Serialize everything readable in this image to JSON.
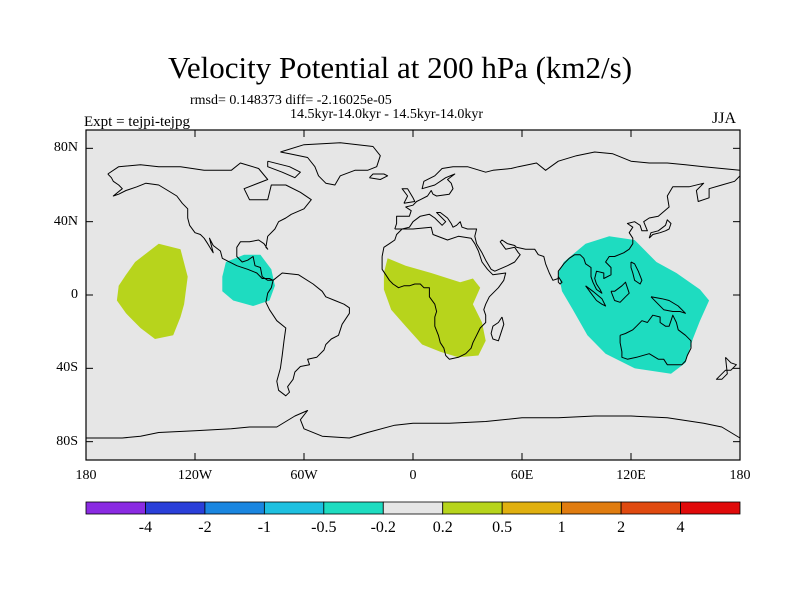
{
  "chart_data": {
    "type": "contour-map",
    "title": "Velocity Potential at 200 hPa (km2/s)",
    "subtitle_stats": "rmsd= 0.148373 diff= -2.16025e-05",
    "experiment_range": "14.5kyr-14.0kyr - 14.5kyr-14.0kyr",
    "experiment_label": "Expt = tejpi-tejpg",
    "season": "JJA",
    "x_axis": {
      "range": [
        -180,
        180
      ],
      "ticks": [
        {
          "value": -180,
          "label": "180"
        },
        {
          "value": -120,
          "label": "120W"
        },
        {
          "value": -60,
          "label": "60W"
        },
        {
          "value": 0,
          "label": "0"
        },
        {
          "value": 60,
          "label": "60E"
        },
        {
          "value": 120,
          "label": "120E"
        },
        {
          "value": 180,
          "label": "180"
        }
      ]
    },
    "y_axis": {
      "range": [
        -90,
        90
      ],
      "ticks": [
        {
          "value": 80,
          "label": "80N"
        },
        {
          "value": 40,
          "label": "40N"
        },
        {
          "value": 0,
          "label": "0"
        },
        {
          "value": -40,
          "label": "40S"
        },
        {
          "value": -80,
          "label": "80S"
        }
      ]
    },
    "colorbar": {
      "colors": [
        "#8a2be2",
        "#2a3fd9",
        "#1a86e0",
        "#1ec0e0",
        "#1edcc0",
        "#e6e6e6",
        "#b7d41c",
        "#e0b010",
        "#e07c10",
        "#e04a10",
        "#e00a0a"
      ],
      "labels": [
        "-4",
        "-2",
        "-1",
        "-0.5",
        "-0.2",
        "0.2",
        "0.5",
        "1",
        "2",
        "4"
      ]
    },
    "regions": [
      {
        "name": "central-pacific",
        "level": "0.2 to 0.5",
        "color": "#b7d41c",
        "outline": [
          [
            -153,
            18
          ],
          [
            -140,
            28
          ],
          [
            -128,
            25
          ],
          [
            -124,
            10
          ],
          [
            -126,
            -5
          ],
          [
            -128,
            -12
          ],
          [
            -132,
            -22
          ],
          [
            -142,
            -24
          ],
          [
            -150,
            -18
          ],
          [
            -158,
            -10
          ],
          [
            -163,
            -3
          ],
          [
            -162,
            5
          ],
          [
            -158,
            11
          ]
        ]
      },
      {
        "name": "central-america",
        "level": "-0.5 to -0.2",
        "color": "#1edcc0",
        "outline": [
          [
            -103,
            18
          ],
          [
            -93,
            22
          ],
          [
            -84,
            22
          ],
          [
            -78,
            14
          ],
          [
            -76,
            5
          ],
          [
            -79,
            -3
          ],
          [
            -88,
            -6
          ],
          [
            -99,
            -3
          ],
          [
            -105,
            2
          ],
          [
            -105,
            10
          ]
        ]
      },
      {
        "name": "africa",
        "level": "0.2 to 0.5",
        "color": "#b7d41c",
        "outline": [
          [
            -14,
            20
          ],
          [
            -4,
            16
          ],
          [
            10,
            12
          ],
          [
            26,
            7
          ],
          [
            33,
            9
          ],
          [
            37,
            4
          ],
          [
            33,
            -5
          ],
          [
            38,
            -15
          ],
          [
            40,
            -25
          ],
          [
            36,
            -33
          ],
          [
            25,
            -34
          ],
          [
            15,
            -31
          ],
          [
            5,
            -27
          ],
          [
            -4,
            -17
          ],
          [
            -12,
            -8
          ],
          [
            -16,
            3
          ],
          [
            -16,
            12
          ]
        ]
      },
      {
        "name": "indo-pacific",
        "level": "-0.5 to -0.2",
        "color": "#1edcc0",
        "outline": [
          [
            83,
            18
          ],
          [
            95,
            28
          ],
          [
            108,
            32
          ],
          [
            122,
            30
          ],
          [
            134,
            18
          ],
          [
            145,
            12
          ],
          [
            158,
            3
          ],
          [
            163,
            -3
          ],
          [
            158,
            -14
          ],
          [
            154,
            -24
          ],
          [
            150,
            -37
          ],
          [
            142,
            -43
          ],
          [
            122,
            -40
          ],
          [
            106,
            -32
          ],
          [
            96,
            -22
          ],
          [
            88,
            -8
          ],
          [
            82,
            2
          ],
          [
            80,
            12
          ]
        ]
      }
    ]
  }
}
